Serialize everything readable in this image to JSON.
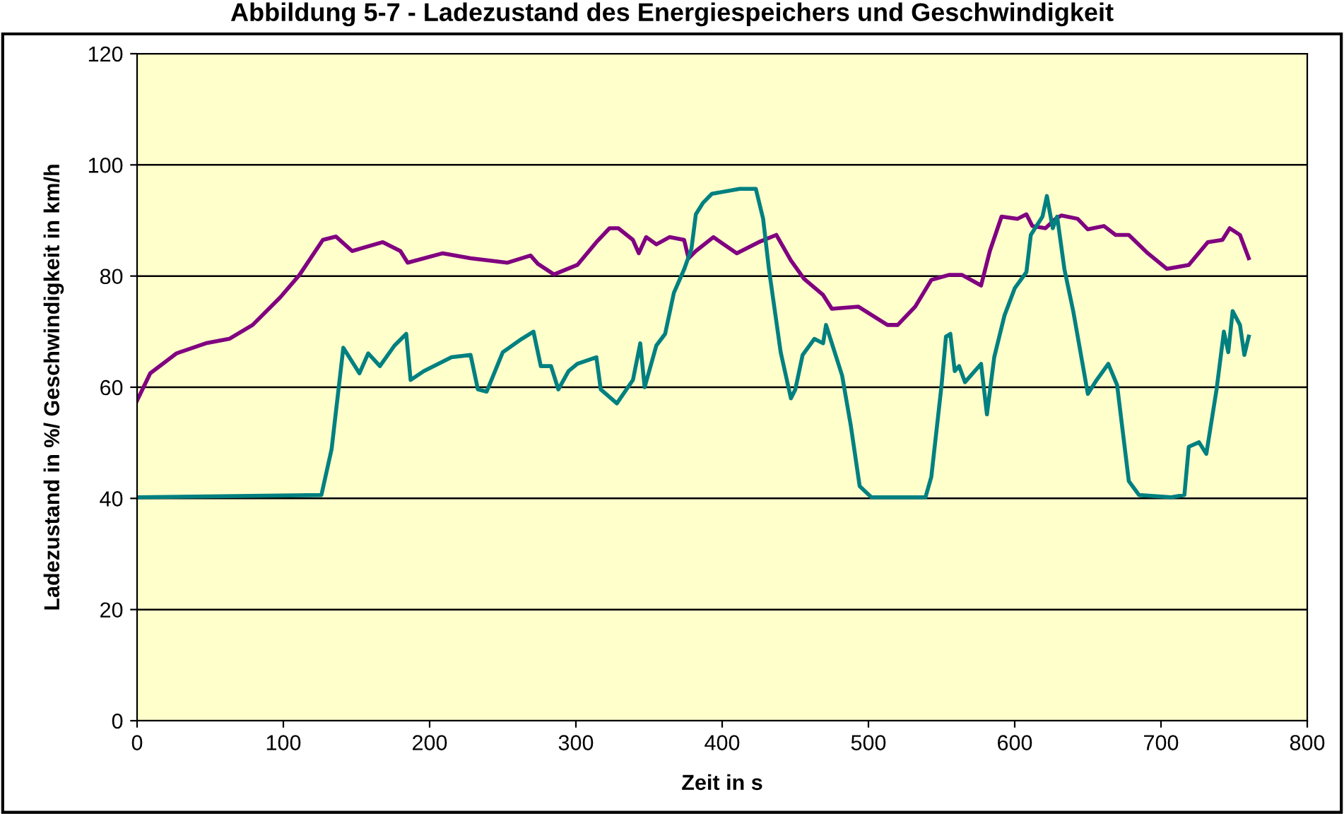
{
  "chart_data": {
    "type": "line",
    "title": "Abbildung 5-7 - Ladezustand des Energiespeichers und Geschwindigkeit",
    "xlabel": "Zeit in s",
    "ylabel": "Ladezustand in %/ Geschwindigkeit in km/h",
    "xlim": [
      0,
      800
    ],
    "xticks": [
      0,
      100,
      200,
      300,
      400,
      500,
      600,
      700,
      800
    ],
    "ylim": [
      0,
      120
    ],
    "yticks": [
      0,
      20,
      40,
      60,
      80,
      100,
      120
    ],
    "grid": "y",
    "marker": "none",
    "line_style": "solid",
    "series": [
      {
        "color": "#800080",
        "x": [
          0,
          9,
          27,
          47,
          63,
          79,
          98,
          111,
          127,
          136,
          147,
          168,
          180,
          185,
          209,
          228,
          253,
          269,
          274,
          285,
          301,
          314,
          323,
          329,
          339,
          343,
          348,
          355,
          364,
          374,
          377,
          382,
          394,
          410,
          425,
          437,
          447,
          456,
          469,
          475,
          493,
          513,
          520,
          532,
          543,
          555,
          564,
          577,
          583,
          591,
          602,
          608,
          612,
          621,
          628,
          632,
          643,
          650,
          661,
          669,
          678,
          691,
          704,
          719,
          732,
          742,
          747,
          754,
          760
        ],
        "values": [
          57.6,
          62.5,
          66.1,
          67.9,
          68.7,
          71.2,
          76.2,
          80.2,
          86.5,
          87.1,
          84.5,
          86.1,
          84.5,
          82.4,
          84.1,
          83.2,
          82.4,
          83.7,
          82.2,
          80.3,
          82.0,
          86.1,
          88.6,
          88.6,
          86.5,
          84.1,
          87.0,
          85.7,
          87.0,
          86.5,
          83.2,
          84.5,
          87.0,
          84.1,
          86.1,
          87.4,
          82.8,
          79.5,
          76.6,
          74.1,
          74.5,
          71.2,
          71.2,
          74.5,
          79.3,
          80.2,
          80.2,
          78.3,
          84.5,
          90.7,
          90.3,
          91.1,
          89.0,
          88.6,
          90.3,
          90.9,
          90.3,
          88.4,
          89.0,
          87.4,
          87.4,
          84.1,
          81.3,
          82.0,
          86.1,
          86.5,
          88.6,
          87.4,
          83.2
        ]
      },
      {
        "color": "#008080",
        "x": [
          0,
          126,
          133,
          141,
          152,
          158,
          166,
          176,
          184,
          187,
          196,
          215,
          228,
          233,
          239,
          250,
          263,
          271,
          276,
          283,
          288,
          295,
          301,
          314,
          317,
          328,
          339,
          344,
          347,
          355,
          361,
          367,
          374,
          379,
          382,
          387,
          393,
          412,
          423,
          428,
          432,
          440,
          447,
          450,
          455,
          463,
          469,
          471,
          482,
          488,
          494,
          502,
          539,
          543,
          550,
          553,
          556,
          559,
          562,
          566,
          577,
          581,
          586,
          593,
          600,
          608,
          611,
          619,
          622,
          626,
          629,
          634,
          640,
          650,
          656,
          664,
          670,
          678,
          685,
          707,
          716,
          719,
          726,
          731,
          738,
          743,
          746,
          749,
          754,
          757,
          760
        ],
        "values": [
          40.2,
          40.6,
          48.9,
          67.1,
          62.5,
          66.1,
          63.8,
          67.5,
          69.6,
          61.3,
          62.9,
          65.4,
          65.8,
          59.6,
          59.2,
          66.3,
          68.7,
          70.0,
          63.8,
          63.8,
          59.6,
          62.9,
          64.2,
          65.4,
          59.6,
          57.1,
          61.3,
          67.9,
          60.0,
          67.5,
          69.6,
          77.0,
          81.2,
          84.9,
          91.1,
          93.2,
          94.8,
          95.7,
          95.7,
          90.3,
          81.2,
          66.3,
          58.0,
          59.6,
          65.8,
          68.7,
          67.9,
          71.2,
          62.1,
          53.0,
          42.2,
          40.2,
          40.2,
          43.9,
          60.4,
          69.1,
          69.6,
          62.9,
          63.8,
          60.9,
          64.2,
          55.1,
          65.4,
          72.9,
          77.8,
          80.7,
          87.4,
          90.7,
          94.4,
          88.6,
          90.7,
          81.2,
          73.7,
          58.8,
          61.3,
          64.2,
          60.4,
          43.1,
          40.6,
          40.2,
          40.6,
          49.3,
          50.1,
          48.0,
          59.6,
          70.0,
          66.3,
          73.7,
          71.2,
          65.8,
          69.1
        ]
      }
    ]
  }
}
